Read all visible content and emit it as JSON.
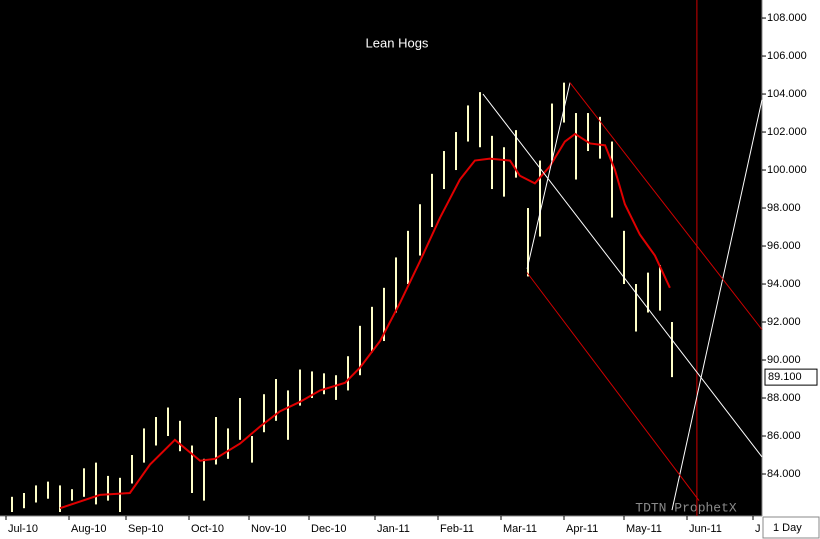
{
  "chart_data": {
    "type": "ohlc",
    "title": "Lean Hogs",
    "watermark": "TDTN ProphetX",
    "interval": "1 Day",
    "bar_color": "#ffffc8",
    "ma_color": "#e00000",
    "xlim": [
      0,
      254
    ],
    "ylim": [
      81.79,
      108.95
    ],
    "xticks": [
      {
        "value": 2,
        "label": "Jul-10"
      },
      {
        "value": 23,
        "label": "Aug-10"
      },
      {
        "value": 42,
        "label": "Sep-10"
      },
      {
        "value": 63,
        "label": "Oct-10"
      },
      {
        "value": 83,
        "label": "Nov-10"
      },
      {
        "value": 103,
        "label": "Dec-10"
      },
      {
        "value": 125,
        "label": "Jan-11"
      },
      {
        "value": 146,
        "label": "Feb-11"
      },
      {
        "value": 167,
        "label": "Mar-11"
      },
      {
        "value": 188,
        "label": "Apr-11"
      },
      {
        "value": 208,
        "label": "May-11"
      },
      {
        "value": 229,
        "label": "Jun-11"
      },
      {
        "value": 251,
        "label": "J"
      }
    ],
    "yticks": [
      {
        "value": 84,
        "label": "84.000"
      },
      {
        "value": 86,
        "label": "86.000"
      },
      {
        "value": 88,
        "label": "88.000"
      },
      {
        "value": 90,
        "label": "90.000"
      },
      {
        "value": 92,
        "label": "92.000"
      },
      {
        "value": 94,
        "label": "94.000"
      },
      {
        "value": 96,
        "label": "96.000"
      },
      {
        "value": 98,
        "label": "98.000"
      },
      {
        "value": 100,
        "label": "100.000"
      },
      {
        "value": 102,
        "label": "102.000"
      },
      {
        "value": 104,
        "label": "104.000"
      },
      {
        "value": 106,
        "label": "106.000"
      },
      {
        "value": 108,
        "label": "108.000"
      }
    ],
    "last_price": {
      "value": 89.1,
      "label": "89.100"
    },
    "x": [
      4,
      8,
      12,
      16,
      20,
      24,
      28,
      32,
      36,
      40,
      44,
      48,
      52,
      56,
      60,
      64,
      68,
      72,
      76,
      80,
      84,
      88,
      92,
      96,
      100,
      104,
      108,
      112,
      116,
      120,
      124,
      128,
      132,
      136,
      140,
      144,
      148,
      152,
      156,
      160,
      164,
      168,
      172,
      176,
      180,
      184,
      188,
      192,
      196,
      200,
      204,
      208,
      212,
      216,
      220,
      224
    ],
    "low": [
      82.0,
      82.2,
      82.5,
      82.7,
      82.0,
      82.6,
      82.8,
      82.4,
      82.6,
      82.0,
      83.5,
      84.6,
      85.5,
      86.0,
      85.2,
      83.0,
      82.6,
      84.5,
      84.8,
      85.8,
      84.6,
      86.2,
      86.8,
      85.8,
      87.6,
      88.0,
      88.2,
      87.9,
      88.4,
      89.2,
      90.4,
      91.0,
      92.5,
      94.0,
      95.5,
      97.0,
      99.0,
      100.0,
      101.5,
      101.2,
      99.0,
      98.6,
      99.6,
      94.4,
      96.5,
      100.5,
      102.5,
      99.5,
      101.0,
      100.6,
      97.5,
      94.0,
      91.5,
      92.5,
      92.6,
      89.1
    ],
    "high": [
      82.8,
      83.0,
      83.4,
      83.6,
      83.4,
      83.2,
      84.3,
      84.6,
      83.9,
      83.8,
      85.0,
      86.4,
      87.0,
      87.5,
      86.8,
      85.5,
      84.8,
      87.0,
      86.4,
      88.0,
      86.0,
      88.2,
      89.0,
      88.4,
      89.5,
      89.4,
      89.3,
      89.2,
      90.2,
      91.8,
      92.8,
      93.8,
      95.4,
      96.8,
      98.2,
      99.8,
      101.0,
      102.0,
      103.4,
      104.1,
      101.8,
      101.2,
      102.1,
      98.0,
      100.5,
      103.5,
      104.6,
      103.0,
      103.0,
      102.8,
      101.5,
      96.8,
      94.0,
      94.6,
      95.0,
      92.0
    ],
    "ma": {
      "x": [
        20,
        33.3,
        43.3,
        50,
        58.3,
        66.7,
        71.7,
        80,
        86.7,
        93.3,
        100,
        106.7,
        115,
        120,
        126.7,
        133.3,
        140,
        146.7,
        153.3,
        158.3,
        163.3,
        170,
        173.3,
        178.3,
        183.3,
        188.3,
        191.7,
        196.7,
        201.7,
        205,
        208.3,
        213.3,
        218.3,
        223.3
      ],
      "values": [
        82.2,
        82.9,
        83.0,
        84.5,
        85.8,
        84.7,
        84.8,
        85.6,
        86.5,
        87.3,
        87.8,
        88.4,
        88.8,
        89.6,
        91.0,
        93.0,
        95.2,
        97.5,
        99.5,
        100.5,
        100.6,
        100.5,
        99.7,
        99.3,
        100.2,
        101.5,
        101.9,
        101.4,
        101.3,
        100.0,
        98.2,
        96.6,
        95.5,
        93.8
      ]
    },
    "trendlines": [
      {
        "color": "#ffffff",
        "x": [
          161,
          254
        ],
        "values": [
          104.0,
          84.9
        ]
      },
      {
        "color": "#ffffff",
        "x": [
          175.7,
          190
        ],
        "values": [
          94.8,
          104.6
        ]
      },
      {
        "color": "#ffffff",
        "x": [
          224,
          254
        ],
        "values": [
          82.1,
          103.7
        ]
      },
      {
        "color": "#d00000",
        "x": [
          190,
          254
        ],
        "values": [
          104.6,
          91.6
        ]
      },
      {
        "color": "#d00000",
        "x": [
          175.7,
          233
        ],
        "values": [
          94.6,
          82.6
        ]
      }
    ],
    "vline_x": 232.3,
    "vline_color": "#d00000"
  }
}
